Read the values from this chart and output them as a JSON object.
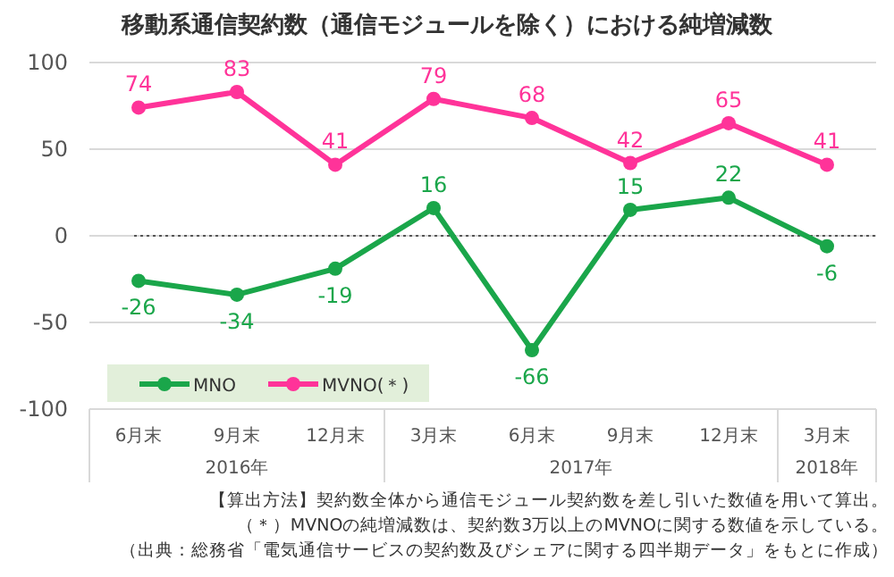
{
  "chart_data": {
    "type": "line",
    "title": "移動系通信契約数（通信モジュールを除く）における純増減数",
    "categories": [
      "6月末",
      "9月末",
      "12月末",
      "3月末",
      "6月末",
      "9月末",
      "12月末",
      "3月末"
    ],
    "series": [
      {
        "name": "MNO",
        "color": "#1aa64a",
        "values": [
          -26,
          -34,
          -19,
          16,
          -66,
          15,
          22,
          -6
        ]
      },
      {
        "name": "MVNO(＊)",
        "color": "#ff3399",
        "values": [
          74,
          83,
          41,
          79,
          68,
          42,
          65,
          41
        ]
      }
    ],
    "ylim": [
      -100,
      100
    ],
    "yticks": [
      -100,
      -50,
      0,
      50,
      100
    ],
    "grid": "y",
    "legend": "bottom left",
    "marker": "circle",
    "line_style": "solid",
    "data_labels": true,
    "ref_lines": [
      {
        "axis": "y",
        "value": 0,
        "line_style": "dotted",
        "color": "#555555"
      }
    ],
    "annotations": [
      "2016年",
      "2017年",
      "2018年",
      "【算出方法】契約数全体から通信モジュール契約数を差し引いた数値を用いて算出。",
      "（＊）MVNOの純増減数は、契約数3万以上のMVNOに関する数値を示している。",
      "（出典：総務省「電気通信サービスの契約数及びシェアに関する四半期データ」をもとに作成）"
    ]
  }
}
